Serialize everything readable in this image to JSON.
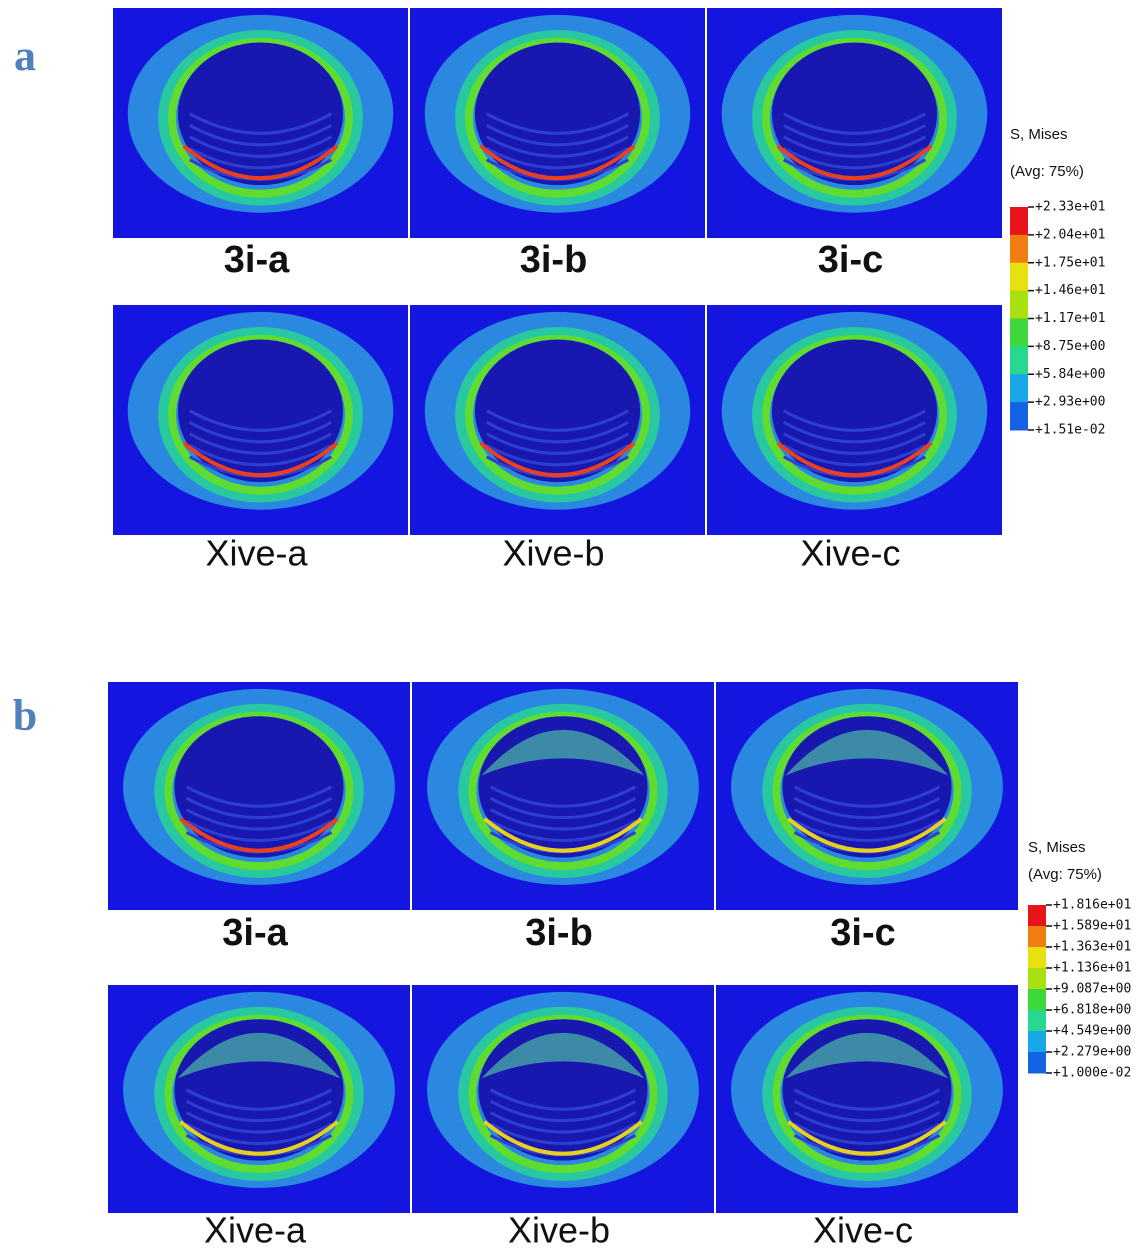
{
  "panels": [
    {
      "label": "a",
      "images": [
        {
          "caption": "3i-a"
        },
        {
          "caption": "3i-b"
        },
        {
          "caption": "3i-c"
        },
        {
          "caption": "Xive-a"
        },
        {
          "caption": "Xive-b"
        },
        {
          "caption": "Xive-c"
        }
      ],
      "legend": {
        "title": "S, Mises",
        "subtitle": "(Avg: 75%)",
        "levels": [
          "+2.33e+01",
          "+2.04e+01",
          "+1.75e+01",
          "+1.46e+01",
          "+1.17e+01",
          "+8.75e+00",
          "+5.84e+00",
          "+2.93e+00",
          "+1.51e-02"
        ]
      }
    },
    {
      "label": "b",
      "images": [
        {
          "caption": "3i-a"
        },
        {
          "caption": "3i-b"
        },
        {
          "caption": "3i-c"
        },
        {
          "caption": "Xive-a"
        },
        {
          "caption": "Xive-b"
        },
        {
          "caption": "Xive-c"
        }
      ],
      "legend": {
        "title": "S, Mises",
        "subtitle": "(Avg: 75%)",
        "levels": [
          "+1.816e+01",
          "+1.589e+01",
          "+1.363e+01",
          "+1.136e+01",
          "+9.087e+00",
          "+6.818e+00",
          "+4.549e+00",
          "+2.279e+00",
          "+1.000e-02"
        ]
      }
    }
  ]
}
